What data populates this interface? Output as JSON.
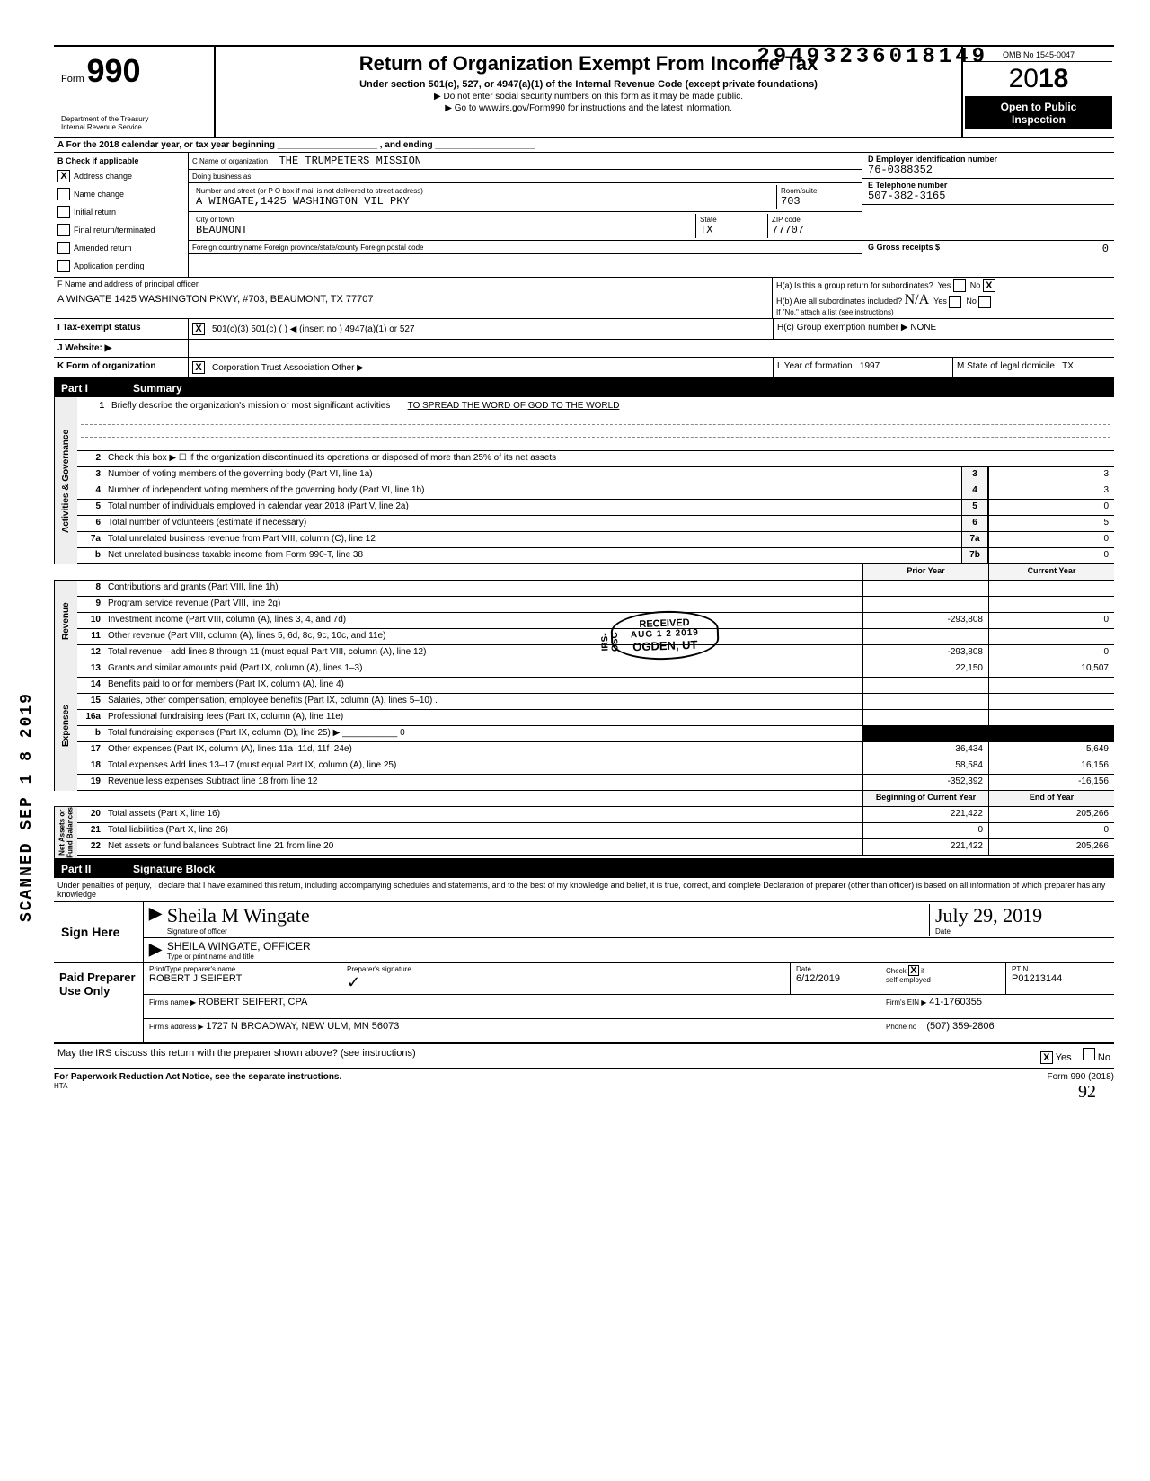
{
  "top_stamp": "29493236018149",
  "omb": "OMB No 1545-0047",
  "form_label": "Form",
  "form_number": "990",
  "title": "Return of Organization Exempt From Income Tax",
  "subtitle": "Under section 501(c), 527, or 4947(a)(1) of the Internal Revenue Code (except private foundations)",
  "note1": "▶ Do not enter social security numbers on this form as it may be made public.",
  "note2": "▶ Go to www.irs.gov/Form990 for instructions and the latest information.",
  "dept": "Department of the Treasury\nInternal Revenue Service",
  "year_prefix": "20",
  "year_bold": "18",
  "inspect1": "Open to Public",
  "inspect2": "Inspection",
  "row_a": "A   For the 2018 calendar year, or tax year beginning ____________________ , and ending ____________________",
  "col_b_head": "B  Check if applicable",
  "checks": [
    {
      "label": "Address change",
      "checked": "X"
    },
    {
      "label": "Name change",
      "checked": ""
    },
    {
      "label": "Initial return",
      "checked": ""
    },
    {
      "label": "Final return/terminated",
      "checked": ""
    },
    {
      "label": "Amended return",
      "checked": ""
    },
    {
      "label": "Application pending",
      "checked": ""
    }
  ],
  "c_name_lbl": "C  Name of organization",
  "c_name": "THE TRUMPETERS MISSION",
  "dba_lbl": "Doing business as",
  "street_lbl": "Number and street (or P O  box if mail is not delivered to street address)",
  "street": "A WINGATE,1425 WASHINGTON VIL PKY",
  "room_lbl": "Room/suite",
  "room": "703",
  "city_lbl": "City or town",
  "city": "BEAUMONT",
  "state_lbl": "State",
  "state": "TX",
  "zip_lbl": "ZIP code",
  "zip": "77707",
  "foreign_lbl": "Foreign country name            Foreign province/state/county            Foreign postal code",
  "d_lbl": "D   Employer identification number",
  "d_val": "76-0388352",
  "e_lbl": "E   Telephone number",
  "e_val": "507-382-3165",
  "g_lbl": "G   Gross receipts $",
  "g_val": "0",
  "f_lbl": "F   Name and address of principal officer",
  "f_val": "A WINGATE 1425 WASHINGTON PKWY, #703, BEAUMONT, TX  77707",
  "ha_lbl": "H(a) Is this a group return for subordinates?",
  "ha_yes": "",
  "ha_no": "X",
  "hb_lbl": "H(b) Are all subordinates included?",
  "hb_note": "If \"No,\" attach a list (see instructions)",
  "hc_lbl": "H(c) Group exemption number ▶",
  "hc_val": "NONE",
  "tax_status_lbl": "I    Tax-exempt status",
  "tax_501c3": "X",
  "tax_opts": "501(c)(3)      501(c)  (        ) ◀ (insert no )      4947(a)(1) or      527",
  "website_lbl": "J   Website: ▶",
  "k_lbl": "K  Form of organization",
  "k_corp": "X",
  "k_opts": "Corporation       Trust       Association       Other ▶",
  "l_lbl": "L  Year of formation",
  "l_val": "1997",
  "m_lbl": "M  State of legal domicile",
  "m_val": "TX",
  "part1": "Part I",
  "part1_title": "Summary",
  "mission_lbl": "Briefly describe the organization's mission or most significant activities",
  "mission": "TO SPREAD THE WORD OF GOD TO THE WORLD",
  "lines_top": [
    {
      "n": "2",
      "t": "Check this box  ▶ ☐  if the organization discontinued its operations or disposed of more than 25% of its net assets"
    },
    {
      "n": "3",
      "t": "Number of voting members of the governing body (Part VI, line 1a)",
      "box": "3",
      "v": "3"
    },
    {
      "n": "4",
      "t": "Number of independent voting members of the governing body (Part VI, line 1b)",
      "box": "4",
      "v": "3"
    },
    {
      "n": "5",
      "t": "Total number of individuals employed in calendar year 2018 (Part V, line 2a)",
      "box": "5",
      "v": "0"
    },
    {
      "n": "6",
      "t": "Total number of volunteers (estimate if necessary)",
      "box": "6",
      "v": "5"
    },
    {
      "n": "7a",
      "t": "Total unrelated business revenue from Part VIII, column (C), line 12",
      "box": "7a",
      "v": "0"
    },
    {
      "n": "b",
      "t": "Net unrelated business taxable income from Form 990-T, line 38",
      "box": "7b",
      "v": "0"
    }
  ],
  "prior_head": "Prior Year",
  "current_head": "Current Year",
  "rev_lines": [
    {
      "n": "8",
      "t": "Contributions and grants (Part VIII, line 1h)",
      "p": "",
      "c": ""
    },
    {
      "n": "9",
      "t": "Program service revenue (Part VIII, line 2g)",
      "p": "",
      "c": ""
    },
    {
      "n": "10",
      "t": "Investment income (Part VIII, column (A), lines 3, 4, and 7d)",
      "p": "-293,808",
      "c": "0"
    },
    {
      "n": "11",
      "t": "Other revenue (Part VIII, column (A), lines 5, 6d, 8c, 9c, 10c, and 11e)",
      "p": "",
      "c": ""
    },
    {
      "n": "12",
      "t": "Total revenue—add lines 8 through 11 (must equal Part VIII, column (A), line 12)",
      "p": "-293,808",
      "c": "0"
    }
  ],
  "exp_lines": [
    {
      "n": "13",
      "t": "Grants and similar amounts paid (Part IX, column (A), lines 1–3)",
      "p": "22,150",
      "c": "10,507"
    },
    {
      "n": "14",
      "t": "Benefits paid to or for members (Part IX, column (A), line 4)",
      "p": "",
      "c": ""
    },
    {
      "n": "15",
      "t": "Salaries, other compensation, employee benefits (Part IX, column (A), lines 5–10) .",
      "p": "",
      "c": ""
    },
    {
      "n": "16a",
      "t": "Professional fundraising fees (Part IX, column (A), line 11e)",
      "p": "",
      "c": ""
    },
    {
      "n": "b",
      "t": "Total fundraising expenses (Part IX, column (D), line 25)  ▶ ___________ 0",
      "p": "",
      "c": "",
      "shade": true
    },
    {
      "n": "17",
      "t": "Other expenses (Part IX, column (A), lines 11a–11d, 11f–24e)",
      "p": "36,434",
      "c": "5,649"
    },
    {
      "n": "18",
      "t": "Total expenses Add lines 13–17 (must equal Part IX, column (A), line 25)",
      "p": "58,584",
      "c": "16,156"
    },
    {
      "n": "19",
      "t": "Revenue less expenses Subtract line 18 from line 12",
      "p": "-352,392",
      "c": "-16,156"
    }
  ],
  "bal_head1": "Beginning of Current Year",
  "bal_head2": "End of Year",
  "bal_lines": [
    {
      "n": "20",
      "t": "Total assets (Part X, line 16)",
      "p": "221,422",
      "c": "205,266"
    },
    {
      "n": "21",
      "t": "Total liabilities (Part X, line 26)",
      "p": "0",
      "c": "0"
    },
    {
      "n": "22",
      "t": "Net assets or fund balances Subtract line 21 from line 20",
      "p": "221,422",
      "c": "205,266"
    }
  ],
  "part2": "Part II",
  "part2_title": "Signature Block",
  "penalty": "Under penalties of perjury, I declare that I have examined this return, including accompanying schedules and statements, and to the best of my knowledge and belief, it is true, correct, and complete Declaration of preparer (other than officer) is based on all information of which preparer has any knowledge",
  "sign_here": "Sign Here",
  "sig_cursive": "Sheila M Wingate",
  "sig_date": "July 29, 2019",
  "sig_officer_lbl": "Signature of officer",
  "sig_date_lbl": "Date",
  "sig_name": "SHEILA WINGATE, OFFICER",
  "sig_name_lbl": "Type or print name and title",
  "prep_title": "Paid Preparer Use Only",
  "prep_name_lbl": "Print/Type preparer's name",
  "prep_name": "ROBERT J SEIFERT",
  "prep_sig_lbl": "Preparer's signature",
  "prep_date_lbl": "Date",
  "prep_date": "6/12/2019",
  "prep_check_lbl": "Check ☒ if self-employed",
  "prep_check": "X",
  "ptin_lbl": "PTIN",
  "ptin": "P01213144",
  "firm_name_lbl": "Firm's name  ▶",
  "firm_name": "ROBERT SEIFERT, CPA",
  "firm_ein_lbl": "Firm's EIN ▶",
  "firm_ein": "41-1760355",
  "firm_addr_lbl": "Firm's address ▶",
  "firm_addr": "1727 N  BROADWAY, NEW ULM, MN 56073",
  "firm_phone_lbl": "Phone no",
  "firm_phone": "(507) 359-2806",
  "discuss": "May the IRS discuss this return with the preparer shown above? (see instructions)",
  "discuss_yes": "X",
  "paperwork": "For Paperwork Reduction Act Notice, see the separate instructions.",
  "form_footer": "Form 990 (2018)",
  "hta": "HTA",
  "side_stamp": "SCANNED SEP 1 8 2019",
  "stamp_received": "RECEIVED",
  "stamp_date": "AUG 1 2 2019",
  "stamp_loc": "OGDEN, UT",
  "stamp_side": "IRS-OSC",
  "vlabels": {
    "gov": "Activities & Governance",
    "rev": "Revenue",
    "exp": "Expenses",
    "bal": "Net Assets or\nFund Balances"
  },
  "hand_note": "92",
  "hb_hand": "N/A"
}
